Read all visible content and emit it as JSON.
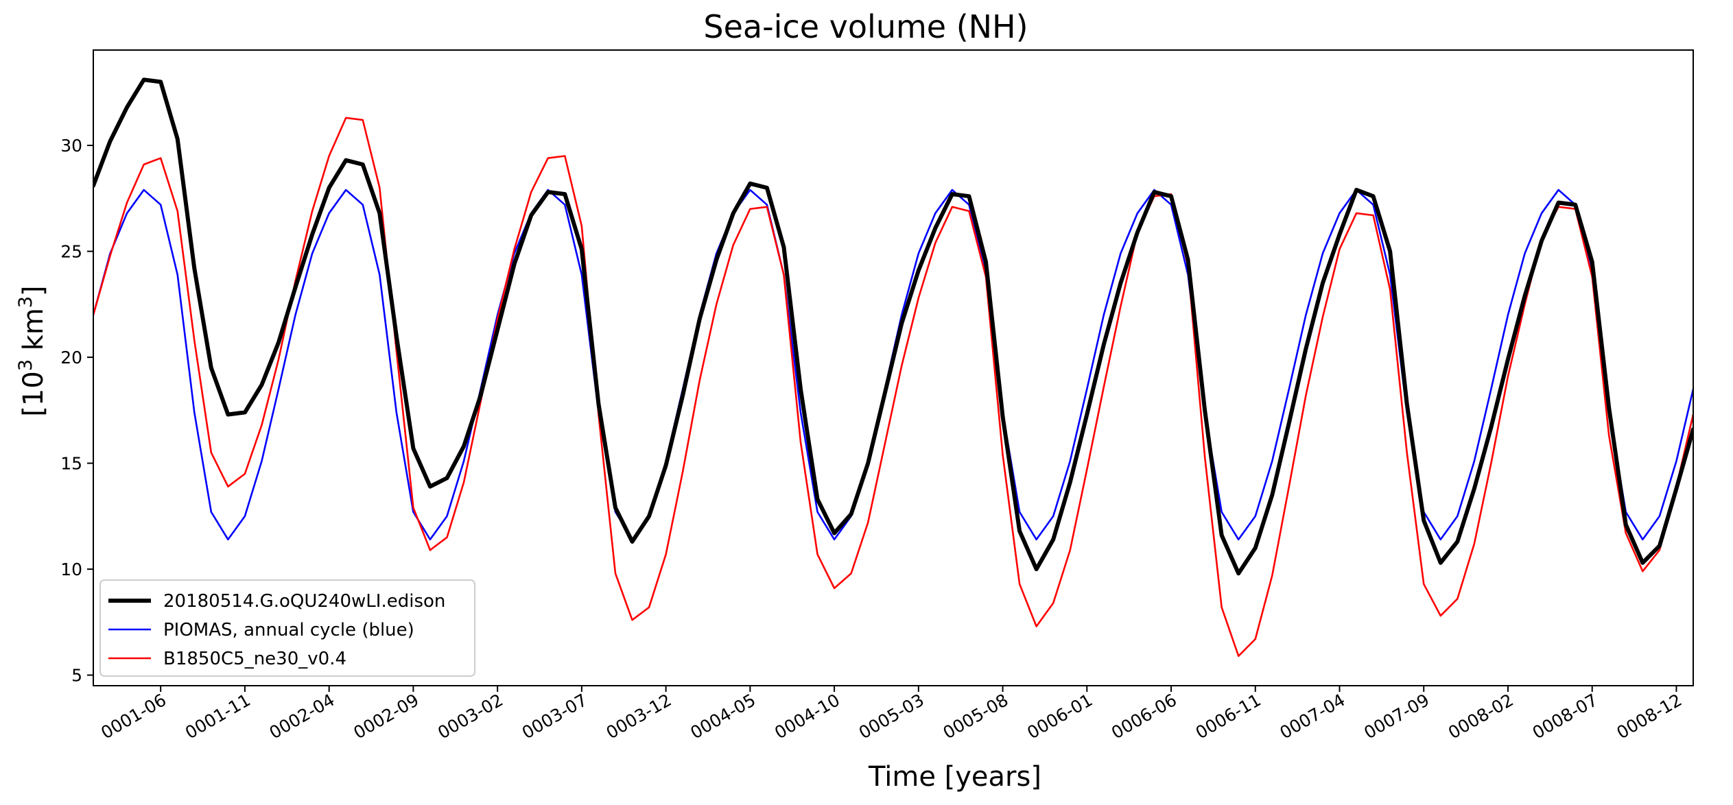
{
  "chart_data": {
    "type": "line",
    "title": "Sea-ice volume (NH)",
    "xlabel": "Time [years]",
    "ylabel_main": "[10",
    "ylabel_sup": "3",
    "ylabel_tail": " km",
    "ylabel_sup2": "3",
    "ylabel_end": "]",
    "xlim": [
      0,
      95
    ],
    "ylim": [
      4.5,
      34.5
    ],
    "yticks": [
      5,
      10,
      15,
      20,
      25,
      30
    ],
    "xticks": [
      {
        "i": 4,
        "label": "0001-06"
      },
      {
        "i": 9,
        "label": "0001-11"
      },
      {
        "i": 14,
        "label": "0002-04"
      },
      {
        "i": 19,
        "label": "0002-09"
      },
      {
        "i": 24,
        "label": "0003-02"
      },
      {
        "i": 29,
        "label": "0003-07"
      },
      {
        "i": 34,
        "label": "0003-12"
      },
      {
        "i": 39,
        "label": "0004-05"
      },
      {
        "i": 44,
        "label": "0004-10"
      },
      {
        "i": 49,
        "label": "0005-03"
      },
      {
        "i": 54,
        "label": "0005-08"
      },
      {
        "i": 59,
        "label": "0006-01"
      },
      {
        "i": 64,
        "label": "0006-06"
      },
      {
        "i": 69,
        "label": "0006-11"
      },
      {
        "i": 74,
        "label": "0007-04"
      },
      {
        "i": 79,
        "label": "0007-09"
      },
      {
        "i": 84,
        "label": "0008-02"
      },
      {
        "i": 89,
        "label": "0008-07"
      },
      {
        "i": 94,
        "label": "0008-12"
      }
    ],
    "grid": false,
    "legend_position": "lower-left",
    "series": [
      {
        "name": "20180514.G.oQU240wLI.edison",
        "color": "#000000",
        "width": 6,
        "values": [
          28.1,
          30.2,
          31.8,
          33.1,
          33.0,
          30.3,
          24.2,
          19.5,
          17.3,
          17.4,
          18.7,
          20.7,
          23.3,
          25.8,
          28.0,
          29.3,
          29.1,
          26.8,
          21.0,
          15.7,
          13.9,
          14.3,
          15.8,
          18.2,
          21.3,
          24.4,
          26.7,
          27.8,
          27.7,
          25.1,
          17.8,
          12.9,
          11.3,
          12.5,
          14.9,
          18.2,
          21.8,
          24.6,
          26.8,
          28.2,
          28.0,
          25.2,
          18.5,
          13.3,
          11.7,
          12.6,
          15.0,
          18.3,
          21.6,
          24.1,
          26.1,
          27.7,
          27.6,
          24.5,
          17.2,
          11.8,
          10.0,
          11.4,
          14.1,
          17.3,
          20.6,
          23.5,
          25.9,
          27.8,
          27.6,
          24.6,
          17.5,
          11.6,
          9.8,
          11.0,
          13.5,
          16.9,
          20.4,
          23.5,
          25.8,
          27.9,
          27.6,
          25.0,
          17.8,
          12.3,
          10.3,
          11.3,
          13.8,
          16.7,
          19.9,
          22.9,
          25.5,
          27.3,
          27.2,
          24.5,
          17.6,
          12.1,
          10.3,
          11.1,
          13.8,
          16.6
        ]
      },
      {
        "name": "PIOMAS, annual cycle (blue)",
        "color": "#0000ff",
        "width": 2.6,
        "values": [
          22.0,
          24.9,
          26.8,
          27.9,
          27.2,
          23.9,
          17.4,
          12.7,
          11.4,
          12.5,
          15.1,
          18.5,
          22.0,
          24.9,
          26.8,
          27.9,
          27.2,
          23.9,
          17.4,
          12.7,
          11.4,
          12.5,
          15.1,
          18.5,
          22.0,
          24.9,
          26.8,
          27.9,
          27.2,
          23.9,
          17.4,
          12.7,
          11.4,
          12.5,
          15.1,
          18.5,
          22.0,
          24.9,
          26.8,
          27.9,
          27.2,
          23.9,
          17.4,
          12.7,
          11.4,
          12.5,
          15.1,
          18.5,
          22.0,
          24.9,
          26.8,
          27.9,
          27.2,
          23.9,
          17.4,
          12.7,
          11.4,
          12.5,
          15.1,
          18.5,
          22.0,
          24.9,
          26.8,
          27.9,
          27.2,
          23.9,
          17.4,
          12.7,
          11.4,
          12.5,
          15.1,
          18.5,
          22.0,
          24.9,
          26.8,
          27.9,
          27.2,
          23.9,
          17.4,
          12.7,
          11.4,
          12.5,
          15.1,
          18.5,
          22.0,
          24.9,
          26.8,
          27.9,
          27.2,
          23.9,
          17.4,
          12.7,
          11.4,
          12.5,
          15.1,
          18.5
        ]
      },
      {
        "name": "B1850C5_ne30_v0.4",
        "color": "#ff0000",
        "width": 2.6,
        "values": [
          22.0,
          24.8,
          27.3,
          29.1,
          29.4,
          26.9,
          20.8,
          15.5,
          13.9,
          14.5,
          16.8,
          19.9,
          23.6,
          26.9,
          29.5,
          31.3,
          31.2,
          28.0,
          20.3,
          12.9,
          10.9,
          11.5,
          14.1,
          17.9,
          21.8,
          25.1,
          27.8,
          29.4,
          29.5,
          26.2,
          17.3,
          9.8,
          7.6,
          8.2,
          10.7,
          14.6,
          18.9,
          22.5,
          25.3,
          27.0,
          27.1,
          23.9,
          16.0,
          10.7,
          9.1,
          9.8,
          12.2,
          15.9,
          19.6,
          22.8,
          25.4,
          27.1,
          26.9,
          23.8,
          15.4,
          9.3,
          7.3,
          8.4,
          10.9,
          14.7,
          18.6,
          22.4,
          25.9,
          27.6,
          27.7,
          24.3,
          15.3,
          8.2,
          5.9,
          6.7,
          9.7,
          13.9,
          18.2,
          21.9,
          25.1,
          26.8,
          26.7,
          23.2,
          15.5,
          9.3,
          7.8,
          8.6,
          11.2,
          15.0,
          19.1,
          22.5,
          25.6,
          27.1,
          27.0,
          23.8,
          16.3,
          11.7,
          9.9,
          10.9,
          13.9,
          17.3
        ]
      }
    ]
  }
}
